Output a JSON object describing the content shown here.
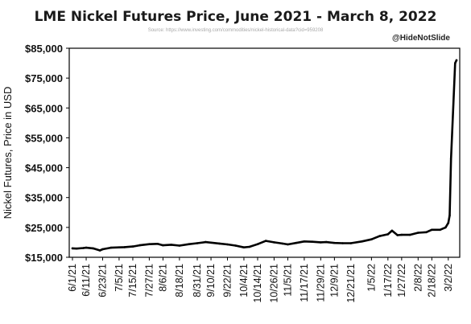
{
  "title": "LME Nickel Futures Price, June 2021 - March 8, 2022",
  "source": "Source: https://www.investing.com/commodities/nickel-historical-data?cid=959208",
  "watermark": "@HideNotSlide",
  "colors": {
    "line": "#000000",
    "axis": "#000000",
    "text": "#111111",
    "source": "#a8a8a8"
  },
  "chart_data": {
    "type": "line",
    "title": "LME Nickel Futures Price, June 2021 - March 8, 2022",
    "ylabel": "Nickel Futures, Price in USD",
    "xlabel": "",
    "ylim": [
      15000,
      85000
    ],
    "ytick_labels": [
      "$15,000",
      "$25,000",
      "$35,000",
      "$45,000",
      "$55,000",
      "$65,000",
      "$75,000",
      "$85,000"
    ],
    "ytick_values": [
      15000,
      25000,
      35000,
      45000,
      55000,
      65000,
      75000,
      85000
    ],
    "xtick_labels": [
      "6/1/21",
      "6/11/21",
      "6/23/21",
      "7/5/21",
      "7/15/21",
      "7/27/21",
      "8/6/21",
      "8/18/21",
      "8/31/21",
      "9/10/21",
      "9/22/21",
      "10/4/21",
      "10/14/21",
      "10/26/21",
      "11/5/21",
      "11/17/21",
      "11/29/21",
      "12/9/21",
      "12/21/21",
      "1/5/22",
      "1/17/22",
      "1/27/22",
      "2/8/22",
      "2/18/22",
      "3/2/22"
    ],
    "grid": false,
    "legend": "none",
    "series": [
      {
        "x": [
          "6/1/21",
          "6/4/21",
          "6/9/21",
          "6/11/21",
          "6/16/21",
          "6/21/21",
          "6/23/21",
          "6/29/21",
          "7/5/21",
          "7/9/21",
          "7/15/21",
          "7/20/21",
          "7/27/21",
          "8/2/21",
          "8/6/21",
          "8/12/21",
          "8/18/21",
          "8/25/21",
          "8/31/21",
          "9/6/21",
          "9/10/21",
          "9/16/21",
          "9/22/21",
          "9/28/21",
          "10/4/21",
          "10/8/21",
          "10/14/21",
          "10/20/21",
          "10/26/21",
          "11/1/21",
          "11/5/21",
          "11/11/21",
          "11/17/21",
          "11/23/21",
          "11/29/21",
          "12/3/21",
          "12/9/21",
          "12/15/21",
          "12/21/21",
          "12/29/21",
          "1/5/22",
          "1/11/22",
          "1/17/22",
          "1/20/22",
          "1/24/22",
          "1/27/22",
          "2/2/22",
          "2/8/22",
          "2/14/22",
          "2/18/22",
          "2/24/22",
          "2/28/22",
          "3/2/22",
          "3/3/22",
          "3/4/22",
          "3/7/22",
          "3/8/22"
        ],
        "values": [
          18000,
          17900,
          18100,
          18200,
          18000,
          17300,
          17700,
          18200,
          18300,
          18400,
          18600,
          19000,
          19400,
          19500,
          19000,
          19200,
          18900,
          19400,
          19700,
          20100,
          19900,
          19600,
          19300,
          18900,
          18300,
          18500,
          19400,
          20500,
          20000,
          19600,
          19300,
          19800,
          20300,
          20200,
          20000,
          20100,
          19800,
          19700,
          19700,
          20300,
          21000,
          22100,
          22700,
          23900,
          22400,
          22500,
          22500,
          23200,
          23400,
          24200,
          24200,
          25000,
          26500,
          29000,
          48000,
          80000,
          81000
        ]
      }
    ]
  }
}
